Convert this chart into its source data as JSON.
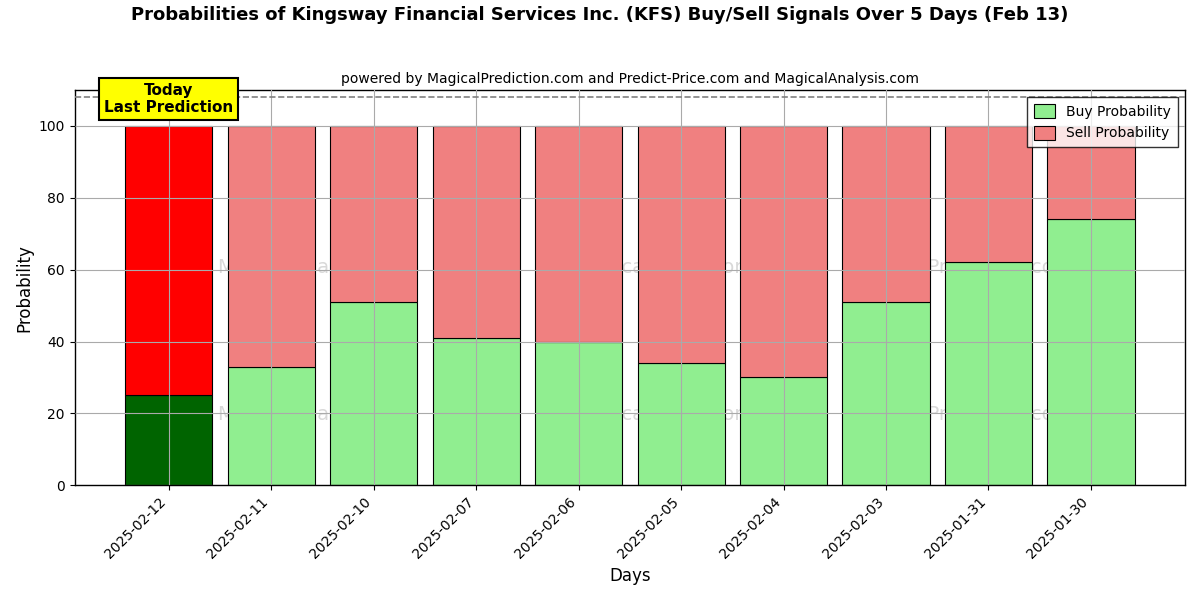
{
  "title": "Probabilities of Kingsway Financial Services Inc. (KFS) Buy/Sell Signals Over 5 Days (Feb 13)",
  "subtitle": "powered by MagicalPrediction.com and Predict-Price.com and MagicalAnalysis.com",
  "xlabel": "Days",
  "ylabel": "Probability",
  "categories": [
    "2025-02-12",
    "2025-02-11",
    "2025-02-10",
    "2025-02-07",
    "2025-02-06",
    "2025-02-05",
    "2025-02-04",
    "2025-02-03",
    "2025-01-31",
    "2025-01-30"
  ],
  "buy_values": [
    25,
    33,
    51,
    41,
    40,
    34,
    30,
    51,
    62,
    74
  ],
  "sell_values": [
    75,
    67,
    49,
    59,
    60,
    66,
    70,
    49,
    38,
    26
  ],
  "buy_colors": [
    "#006400",
    "#90EE90",
    "#90EE90",
    "#90EE90",
    "#90EE90",
    "#90EE90",
    "#90EE90",
    "#90EE90",
    "#90EE90",
    "#90EE90"
  ],
  "sell_colors": [
    "#FF0000",
    "#F08080",
    "#F08080",
    "#F08080",
    "#F08080",
    "#F08080",
    "#F08080",
    "#F08080",
    "#F08080",
    "#F08080"
  ],
  "today_bar_index": 0,
  "today_label": "Today\nLast Prediction",
  "legend_buy_label": "Buy Probability",
  "legend_sell_label": "Sell Probability",
  "ylim": [
    0,
    110
  ],
  "yticks": [
    0,
    20,
    40,
    60,
    80,
    100
  ],
  "dashed_line_y": 108,
  "background_color": "#ffffff",
  "grid_color": "#aaaaaa",
  "bar_edge_color": "#000000",
  "bar_width": 0.85
}
